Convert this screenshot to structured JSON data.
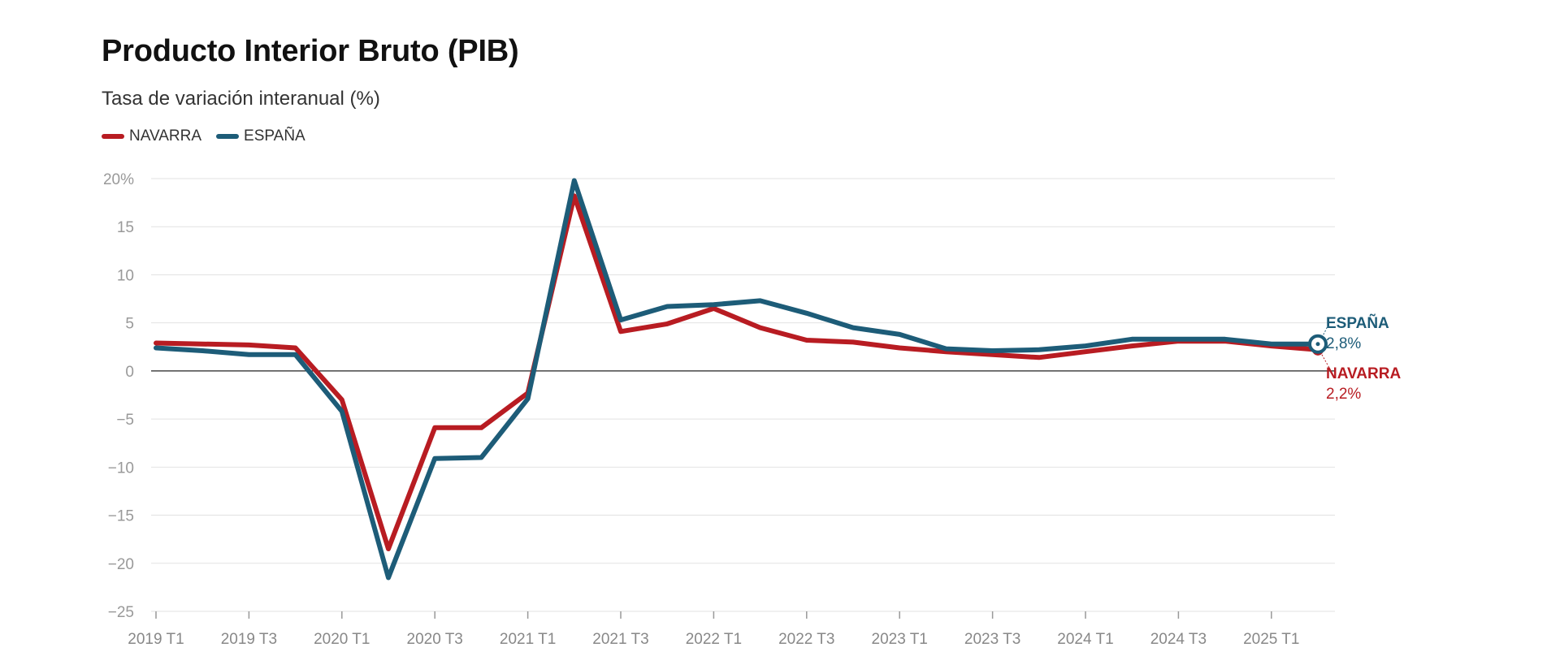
{
  "chart_data": {
    "type": "line",
    "title": "Producto Interior Bruto (PIB)",
    "subtitle": "Tasa de variación interanual (%)",
    "ylim": [
      -25,
      20
    ],
    "yticks": [
      20,
      15,
      10,
      5,
      0,
      -5,
      -10,
      -15,
      -20,
      -25
    ],
    "ytick_labels": [
      "20%",
      "15",
      "10",
      "5",
      "0",
      "−5",
      "−10",
      "−15",
      "−20",
      "−25"
    ],
    "x": [
      "2019 T1",
      "2019 T2",
      "2019 T3",
      "2019 T4",
      "2020 T1",
      "2020 T2",
      "2020 T3",
      "2020 T4",
      "2021 T1",
      "2021 T2",
      "2021 T3",
      "2021 T4",
      "2022 T1",
      "2022 T2",
      "2022 T3",
      "2022 T4",
      "2023 T1",
      "2023 T2",
      "2023 T3",
      "2023 T4",
      "2024 T1",
      "2024 T2",
      "2024 T3",
      "2024 T4",
      "2025 T1",
      "2025 T2"
    ],
    "xtick_labels": [
      "2019 T1",
      "2019 T3",
      "2020 T1",
      "2020 T3",
      "2021 T1",
      "2021 T3",
      "2022 T1",
      "2022 T3",
      "2023 T1",
      "2023 T3",
      "2024 T1",
      "2024 T3",
      "2025 T1"
    ],
    "grid": true,
    "legend_position": "top-left",
    "series": [
      {
        "name": "NAVARRA",
        "color": "#b81c22",
        "values": [
          2.9,
          2.8,
          2.7,
          2.4,
          -3.0,
          -18.5,
          -5.9,
          -5.9,
          -2.3,
          18.2,
          4.1,
          4.9,
          6.5,
          4.5,
          3.2,
          3.0,
          2.4,
          2.0,
          1.7,
          1.4,
          2.0,
          2.6,
          3.1,
          3.1,
          2.6,
          2.2
        ],
        "end_label": "NAVARRA",
        "end_value_label": "2,2%"
      },
      {
        "name": "ESPAÑA",
        "color": "#1d5c78",
        "values": [
          2.4,
          2.1,
          1.7,
          1.7,
          -4.2,
          -21.5,
          -9.1,
          -9.0,
          -2.9,
          19.8,
          5.3,
          6.7,
          6.9,
          7.3,
          6.0,
          4.5,
          3.8,
          2.3,
          2.1,
          2.2,
          2.6,
          3.3,
          3.3,
          3.3,
          2.8,
          2.8
        ],
        "end_label": "ESPAÑA",
        "end_value_label": "2,8%"
      }
    ]
  }
}
